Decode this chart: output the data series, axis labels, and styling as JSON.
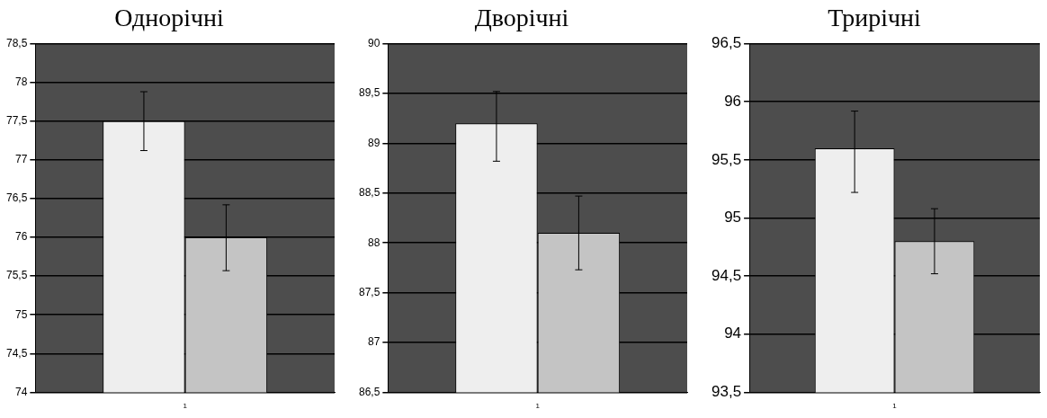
{
  "chart_data": [
    {
      "type": "bar",
      "title": "Однорічні",
      "categories": [
        "1"
      ],
      "series": [
        {
          "color": "#eeeeee",
          "values": [
            77.5
          ],
          "errors": [
            [
              77.12,
              77.88
            ]
          ]
        },
        {
          "color": "#c4c4c4",
          "values": [
            76.0
          ],
          "errors": [
            [
              75.57,
              76.42
            ]
          ]
        }
      ],
      "ylim": [
        74,
        78.5
      ],
      "yticks": [
        74,
        {
          "value": 74.5,
          "label": "74,5"
        },
        75,
        {
          "value": 75.5,
          "label": "75,5"
        },
        76,
        {
          "value": 76.5,
          "label": "76,5"
        },
        77,
        {
          "value": 77.5,
          "label": "77,5"
        },
        78,
        {
          "value": 78.5,
          "label": "78,5"
        }
      ],
      "grid": "y",
      "legend": false
    },
    {
      "type": "bar",
      "title": "Дворічні",
      "categories": [
        "1"
      ],
      "series": [
        {
          "color": "#eeeeee",
          "values": [
            89.2
          ],
          "errors": [
            [
              88.82,
              89.52
            ]
          ]
        },
        {
          "color": "#c4c4c4",
          "values": [
            88.1
          ],
          "errors": [
            [
              87.73,
              88.47
            ]
          ]
        }
      ],
      "ylim": [
        86.5,
        90
      ],
      "yticks": [
        {
          "value": 86.5,
          "label": "86,5"
        },
        87,
        {
          "value": 87.5,
          "label": "87,5"
        },
        88,
        {
          "value": 88.5,
          "label": "88,5"
        },
        89,
        {
          "value": 89.5,
          "label": "89,5"
        },
        90
      ],
      "grid": "y",
      "legend": false
    },
    {
      "type": "bar",
      "title": "Трирічні",
      "categories": [
        "1"
      ],
      "series": [
        {
          "color": "#eeeeee",
          "values": [
            95.6
          ],
          "errors": [
            [
              95.22,
              95.92
            ]
          ]
        },
        {
          "color": "#c4c4c4",
          "values": [
            94.8
          ],
          "errors": [
            [
              94.52,
              95.08
            ]
          ]
        }
      ],
      "ylim": [
        93.5,
        96.5
      ],
      "yticks": [
        {
          "value": 93.5,
          "label": "93,5"
        },
        94,
        {
          "value": 94.5,
          "label": "94,5"
        },
        95,
        {
          "value": 95.5,
          "label": "95,5"
        },
        96,
        {
          "value": 96.5,
          "label": "96,5"
        }
      ],
      "grid": "y",
      "legend": false
    }
  ]
}
